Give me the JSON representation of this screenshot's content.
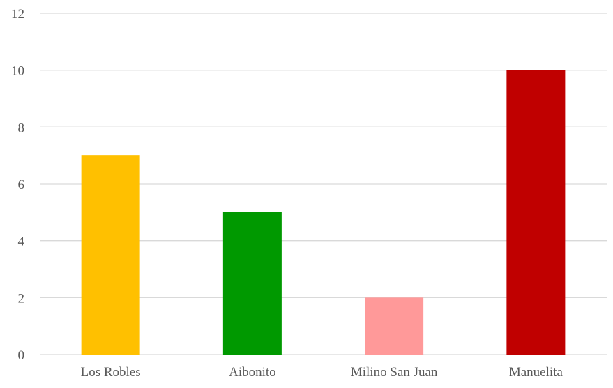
{
  "chart_data": {
    "type": "bar",
    "title": "",
    "xlabel": "",
    "ylabel": "",
    "categories": [
      "Los Robles",
      "Aibonito",
      "Milino San Juan",
      "Manuelita"
    ],
    "values": [
      7,
      5,
      2,
      10
    ],
    "colors": [
      "#FFC000",
      "#009900",
      "#FF9999",
      "#C00000"
    ],
    "ylim": [
      0,
      12
    ],
    "yticks": [
      0,
      2,
      4,
      6,
      8,
      10,
      12
    ],
    "grid": true,
    "legend": "none",
    "gridline_color": "#D9D9D9"
  }
}
